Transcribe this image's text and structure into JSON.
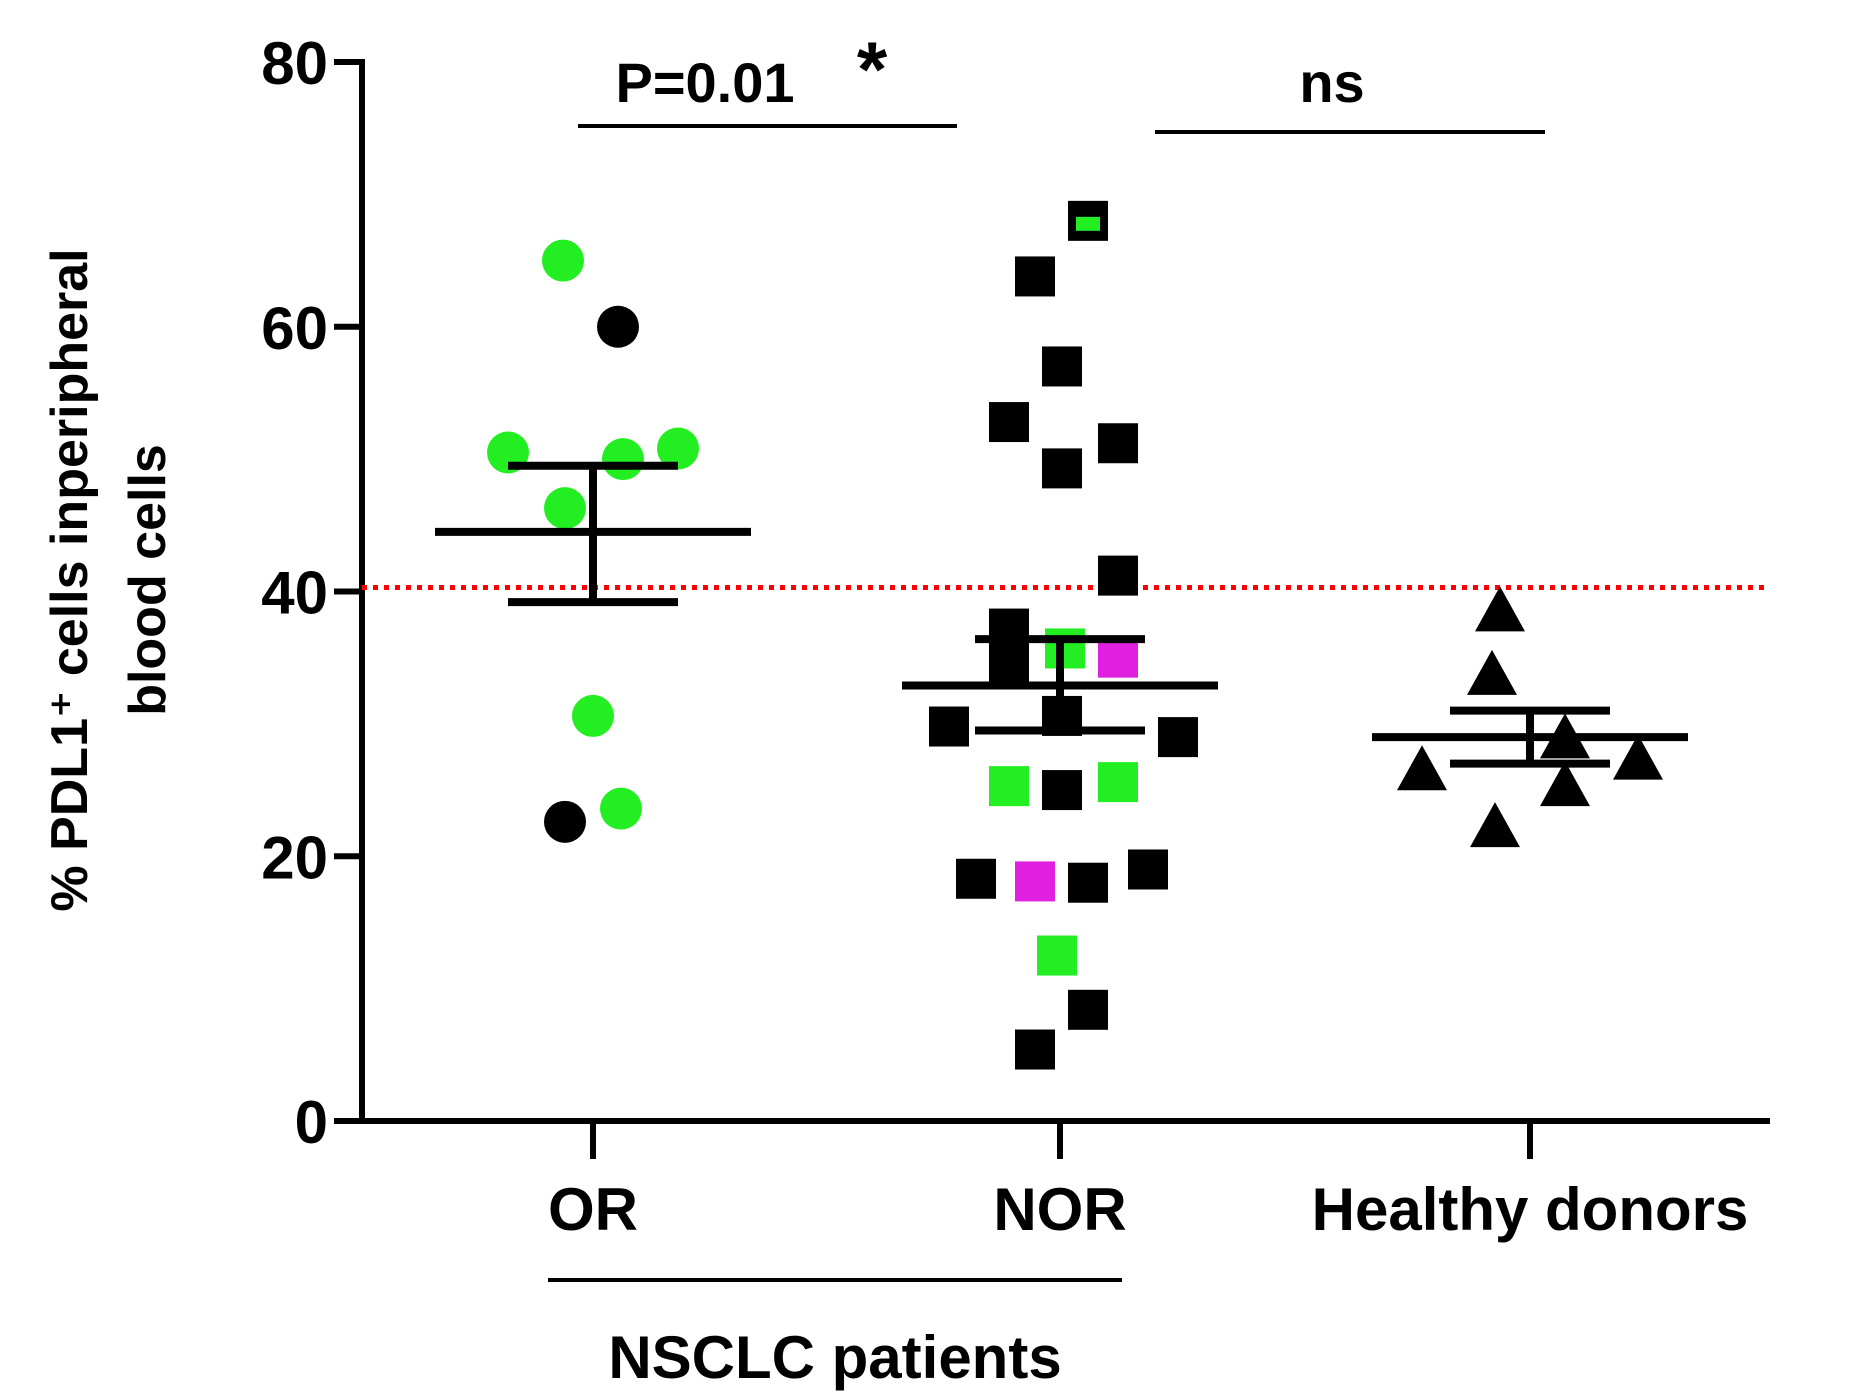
{
  "chart_data": {
    "type": "scatter",
    "subtype": "dot plot with mean and SEM",
    "ylabel_line1": "% PDL1⁺ cells inperipheral",
    "ylabel_line2": "blood cells",
    "ylim": [
      0,
      80
    ],
    "yticks": [
      0,
      20,
      40,
      60,
      80
    ],
    "categories": [
      "OR",
      "NOR",
      "Healthy donors"
    ],
    "group_bracket_label": "NSCLC patients",
    "threshold": {
      "value": 40.3,
      "color": "#ff0000",
      "style": "dotted"
    },
    "comparisons": [
      {
        "groups": [
          "OR",
          "NOR"
        ],
        "label": "P=0.01",
        "star": "*"
      },
      {
        "groups": [
          "NOR",
          "Healthy donors"
        ],
        "label": "ns"
      }
    ],
    "colors": {
      "black": "#000000",
      "green": "#22ee22",
      "magenta": "#e020e0"
    },
    "series": [
      {
        "name": "OR",
        "marker": "circle",
        "mean": 44.5,
        "sem_upper": 49.5,
        "sem_lower": 39.2,
        "points": [
          {
            "value": 65.0,
            "color": "green"
          },
          {
            "value": 60.0,
            "color": "black"
          },
          {
            "value": 50.5,
            "color": "green"
          },
          {
            "value": 50.0,
            "color": "green"
          },
          {
            "value": 50.8,
            "color": "green"
          },
          {
            "value": 46.3,
            "color": "green"
          },
          {
            "value": 30.6,
            "color": "green"
          },
          {
            "value": 23.6,
            "color": "green"
          },
          {
            "value": 22.6,
            "color": "black"
          }
        ]
      },
      {
        "name": "NOR",
        "marker": "square",
        "mean": 32.9,
        "sem_upper": 36.4,
        "sem_lower": 29.5,
        "points": [
          {
            "value": 68.0,
            "color": "black",
            "inner": "green"
          },
          {
            "value": 63.8,
            "color": "black"
          },
          {
            "value": 57.0,
            "color": "black"
          },
          {
            "value": 52.8,
            "color": "black"
          },
          {
            "value": 51.2,
            "color": "black"
          },
          {
            "value": 49.3,
            "color": "black"
          },
          {
            "value": 41.2,
            "color": "black"
          },
          {
            "value": 37.2,
            "color": "black"
          },
          {
            "value": 35.7,
            "color": "green"
          },
          {
            "value": 35.0,
            "color": "magenta"
          },
          {
            "value": 34.5,
            "color": "black"
          },
          {
            "value": 30.6,
            "color": "black"
          },
          {
            "value": 29.8,
            "color": "black"
          },
          {
            "value": 29.0,
            "color": "black"
          },
          {
            "value": 25.3,
            "color": "green"
          },
          {
            "value": 25.0,
            "color": "black"
          },
          {
            "value": 25.6,
            "color": "green"
          },
          {
            "value": 19.0,
            "color": "black"
          },
          {
            "value": 18.3,
            "color": "black"
          },
          {
            "value": 18.1,
            "color": "magenta"
          },
          {
            "value": 18.0,
            "color": "black"
          },
          {
            "value": 12.5,
            "color": "green"
          },
          {
            "value": 8.4,
            "color": "black"
          },
          {
            "value": 5.4,
            "color": "black"
          }
        ]
      },
      {
        "name": "Healthy donors",
        "marker": "triangle",
        "mean": 29.0,
        "sem_upper": 31.0,
        "sem_lower": 27.0,
        "points": [
          {
            "value": 38.5,
            "color": "black"
          },
          {
            "value": 33.7,
            "color": "black"
          },
          {
            "value": 28.9,
            "color": "black"
          },
          {
            "value": 27.3,
            "color": "black"
          },
          {
            "value": 26.5,
            "color": "black"
          },
          {
            "value": 25.3,
            "color": "black"
          },
          {
            "value": 22.2,
            "color": "black"
          }
        ]
      }
    ]
  }
}
